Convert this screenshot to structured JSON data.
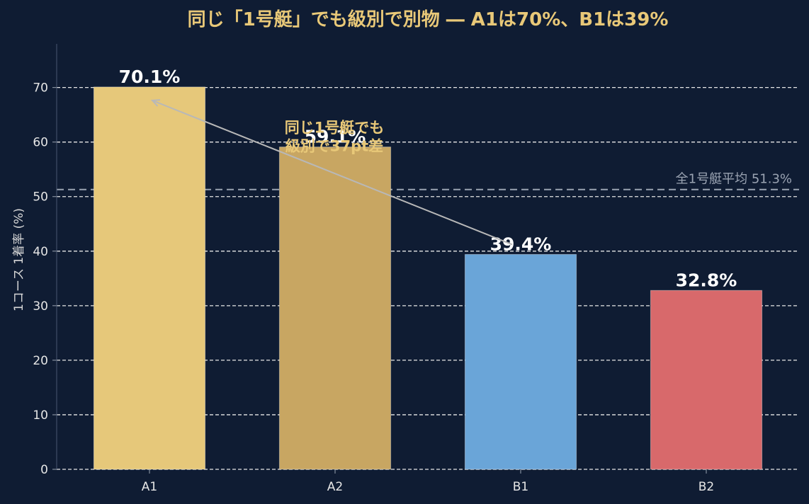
{
  "chart_data": {
    "type": "bar",
    "title": "同じ「1号艇」でも級別で別物 ― A1は70%、B1は39%",
    "ylabel": "1コース 1着率 (%)",
    "xlabel": "",
    "categories": [
      "A1",
      "A2",
      "B1",
      "B2"
    ],
    "values": [
      70.1,
      59.1,
      39.4,
      32.8
    ],
    "value_labels": [
      "70.1%",
      "59.1%",
      "39.4%",
      "32.8%"
    ],
    "colors": [
      "#e6c87a",
      "#c8a662",
      "#6aa5d8",
      "#d8696b"
    ],
    "ylim": [
      0,
      78
    ],
    "yticks": [
      0,
      10,
      20,
      30,
      40,
      50,
      60,
      70
    ],
    "grid": true,
    "reference_line": {
      "value": 51.3,
      "label": "全1号艇平均 51.3%"
    },
    "annotation": {
      "lines": [
        "同じ1号艇でも",
        "級別で37pt差"
      ],
      "from_category": "B1",
      "to_category": "A1"
    }
  }
}
